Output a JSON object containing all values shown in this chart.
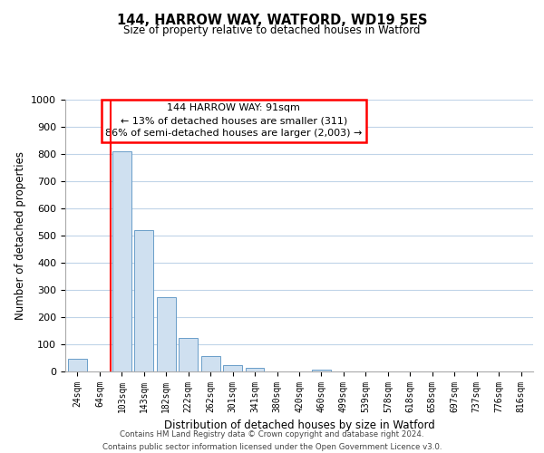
{
  "title": "144, HARROW WAY, WATFORD, WD19 5ES",
  "subtitle": "Size of property relative to detached houses in Watford",
  "xlabel": "Distribution of detached houses by size in Watford",
  "ylabel": "Number of detached properties",
  "bar_labels": [
    "24sqm",
    "64sqm",
    "103sqm",
    "143sqm",
    "182sqm",
    "222sqm",
    "262sqm",
    "301sqm",
    "341sqm",
    "380sqm",
    "420sqm",
    "460sqm",
    "499sqm",
    "539sqm",
    "578sqm",
    "618sqm",
    "658sqm",
    "697sqm",
    "737sqm",
    "776sqm",
    "816sqm"
  ],
  "bar_values": [
    46,
    0,
    810,
    520,
    275,
    125,
    58,
    22,
    14,
    0,
    0,
    8,
    0,
    0,
    0,
    0,
    0,
    0,
    0,
    0,
    0
  ],
  "bar_color": "#cfe0f0",
  "bar_edge_color": "#6a9ec9",
  "ylim": [
    0,
    1000
  ],
  "yticks": [
    0,
    100,
    200,
    300,
    400,
    500,
    600,
    700,
    800,
    900,
    1000
  ],
  "redline_bar_index": 2,
  "annotation_title": "144 HARROW WAY: 91sqm",
  "annotation_line1": "← 13% of detached houses are smaller (311)",
  "annotation_line2": "86% of semi-detached houses are larger (2,003) →",
  "footer_line1": "Contains HM Land Registry data © Crown copyright and database right 2024.",
  "footer_line2": "Contains public sector information licensed under the Open Government Licence v3.0.",
  "bg_color": "#ffffff",
  "grid_color": "#c0d4e8"
}
